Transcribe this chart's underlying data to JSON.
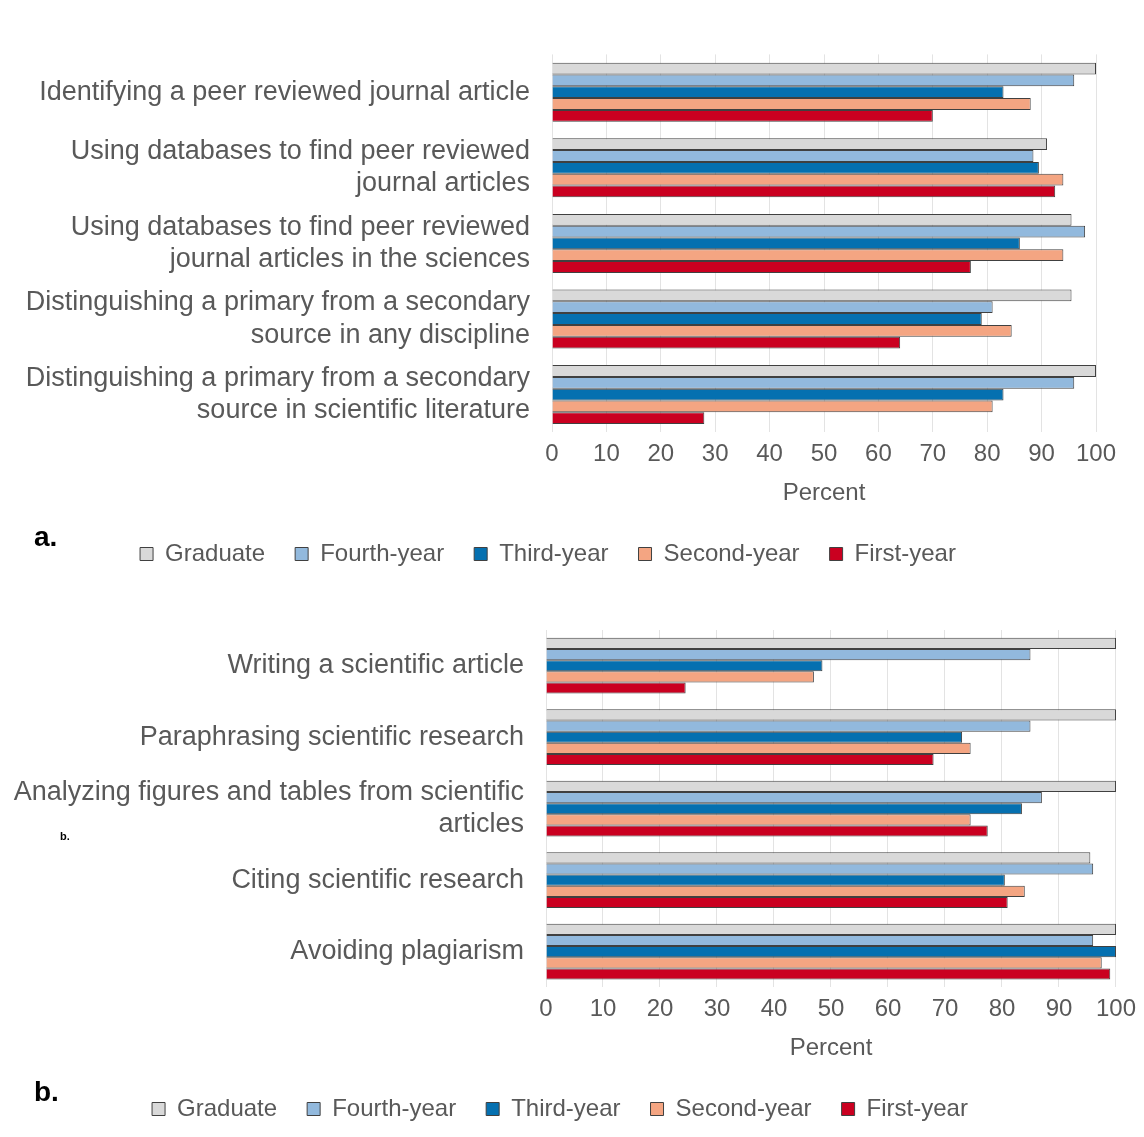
{
  "chart_data": [
    {
      "type": "bar",
      "orientation": "horizontal",
      "categories": [
        "Identifying a peer reviewed journal article",
        "Using databases to find peer reviewed journal articles",
        "Using databases to find peer reviewed journal articles in the sciences",
        "Distinguishing a primary from a secondary source in any discipline",
        "Distinguishing a primary from a secondary source in scientific literature"
      ],
      "series": [
        {
          "name": "Graduate",
          "color": "#d9d9d9",
          "values": [
            100,
            91,
            95.5,
            95.5,
            100
          ]
        },
        {
          "name": "Fourth-year",
          "color": "#92b9dd",
          "values": [
            96,
            88.5,
            98,
            81,
            96
          ]
        },
        {
          "name": "Third-year",
          "color": "#0570b0",
          "values": [
            83,
            89.5,
            86,
            79,
            83
          ]
        },
        {
          "name": "Second-year",
          "color": "#f4a582",
          "values": [
            88,
            94,
            94,
            84.5,
            81
          ]
        },
        {
          "name": "First-year",
          "color": "#ca0020",
          "values": [
            70,
            92.5,
            77,
            64,
            28
          ]
        }
      ],
      "xlabel": "Percent",
      "xlim": [
        0,
        100
      ],
      "xticks": [
        0,
        10,
        20,
        30,
        40,
        50,
        60,
        70,
        80,
        90,
        100
      ],
      "grid": "x",
      "legend": "bottom",
      "annotations": [
        "a."
      ]
    },
    {
      "type": "bar",
      "orientation": "horizontal",
      "categories": [
        "Writing a scientific article",
        "Paraphrasing scientific research",
        "Analyzing figures and tables from scientific articles",
        "Citing scientific research",
        "Avoiding plagiarism"
      ],
      "series": [
        {
          "name": "Graduate",
          "color": "#d9d9d9",
          "values": [
            100,
            100,
            100,
            95.5,
            100
          ]
        },
        {
          "name": "Fourth-year",
          "color": "#92b9dd",
          "values": [
            85,
            85,
            87,
            96,
            96
          ]
        },
        {
          "name": "Third-year",
          "color": "#0570b0",
          "values": [
            48.5,
            73,
            83.5,
            80.5,
            100
          ]
        },
        {
          "name": "Second-year",
          "color": "#f4a582",
          "values": [
            47,
            74.5,
            74.5,
            84,
            97.5
          ]
        },
        {
          "name": "First-year",
          "color": "#ca0020",
          "values": [
            24.5,
            68,
            77.5,
            81,
            99
          ]
        }
      ],
      "xlabel": "Percent",
      "xlim": [
        0,
        100
      ],
      "xticks": [
        0,
        10,
        20,
        30,
        40,
        50,
        60,
        70,
        80,
        90,
        100
      ],
      "grid": "x",
      "legend": "bottom",
      "annotations": [
        "b.",
        "b."
      ]
    }
  ]
}
